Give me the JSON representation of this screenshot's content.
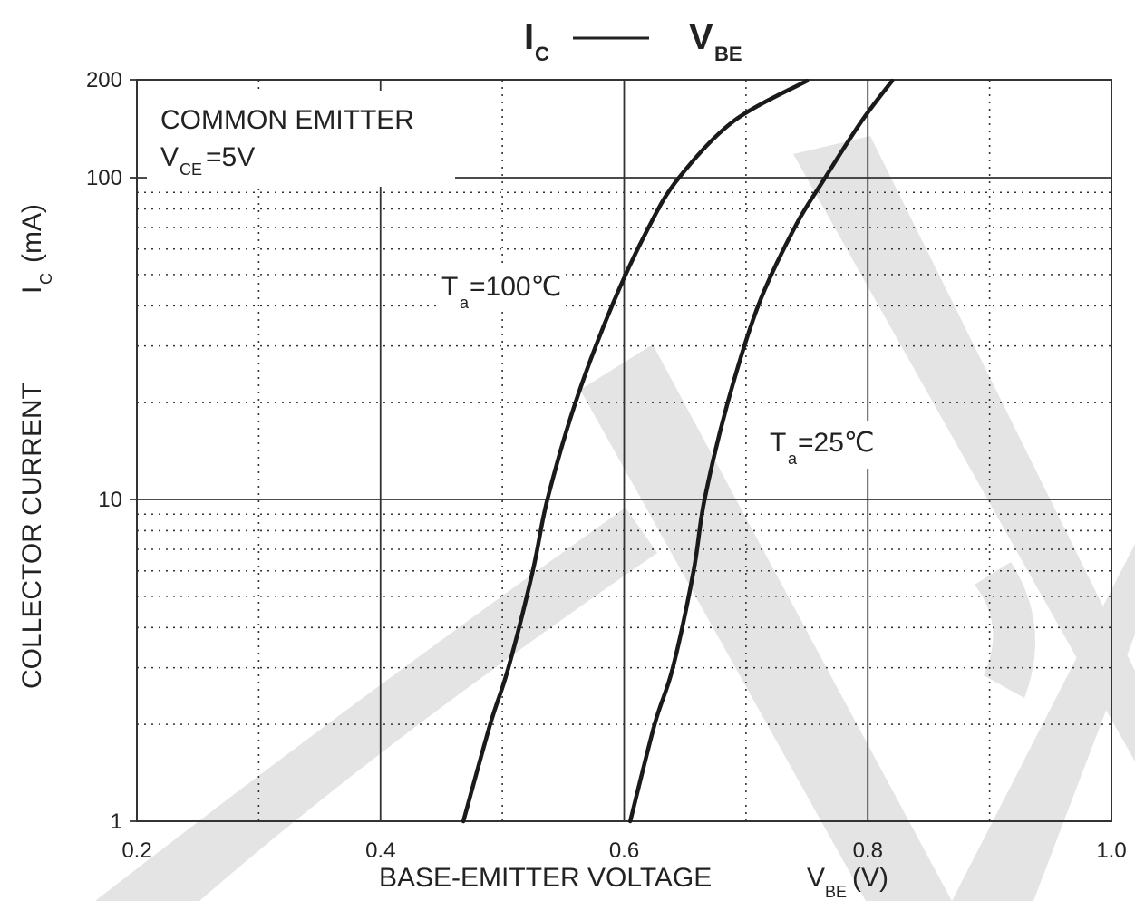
{
  "chart_data": {
    "type": "line",
    "title": {
      "main_1": "I",
      "sub_1": "C",
      "main_2": "V",
      "sub_2": "BE"
    },
    "xlabel": {
      "text": "BASE-EMITTER VOLTAGE",
      "symbol": "V",
      "symbol_sub": "BE",
      "unit": "(V)"
    },
    "ylabel": {
      "text": "COLLECTOR CURRENT",
      "symbol": "I",
      "symbol_sub": "C",
      "unit": "(mA)"
    },
    "xlim": [
      0.2,
      1.0
    ],
    "ylim": [
      1,
      200
    ],
    "y_scale": "log",
    "grid": true,
    "x_ticks": [
      {
        "value": 0.2,
        "label": "0.2"
      },
      {
        "value": 0.4,
        "label": "0.4"
      },
      {
        "value": 0.6,
        "label": "0.6"
      },
      {
        "value": 0.8,
        "label": "0.8"
      },
      {
        "value": 1.0,
        "label": "1.0"
      }
    ],
    "y_ticks": [
      {
        "value": 1,
        "label": "1"
      },
      {
        "value": 10,
        "label": "10"
      },
      {
        "value": 100,
        "label": "100"
      },
      {
        "value": 200,
        "label": "200"
      }
    ],
    "annotations": {
      "condition_line1": "COMMON EMITTER",
      "condition_line2_main": "V",
      "condition_line2_sub": "CE",
      "condition_line2_rest": "=5V"
    },
    "series": [
      {
        "label_main": "T",
        "label_sub": "a",
        "label_rest": "=100℃",
        "points": [
          {
            "x": 0.468,
            "y": 1
          },
          {
            "x": 0.49,
            "y": 2
          },
          {
            "x": 0.505,
            "y": 3
          },
          {
            "x": 0.525,
            "y": 6
          },
          {
            "x": 0.537,
            "y": 10
          },
          {
            "x": 0.56,
            "y": 20
          },
          {
            "x": 0.59,
            "y": 40
          },
          {
            "x": 0.62,
            "y": 70
          },
          {
            "x": 0.645,
            "y": 100
          },
          {
            "x": 0.69,
            "y": 150
          },
          {
            "x": 0.75,
            "y": 200
          }
        ]
      },
      {
        "label_main": "T",
        "label_sub": "a",
        "label_rest": "=25℃",
        "points": [
          {
            "x": 0.605,
            "y": 1
          },
          {
            "x": 0.625,
            "y": 2
          },
          {
            "x": 0.64,
            "y": 3
          },
          {
            "x": 0.657,
            "y": 6
          },
          {
            "x": 0.666,
            "y": 10
          },
          {
            "x": 0.685,
            "y": 20
          },
          {
            "x": 0.71,
            "y": 40
          },
          {
            "x": 0.74,
            "y": 70
          },
          {
            "x": 0.765,
            "y": 100
          },
          {
            "x": 0.795,
            "y": 150
          },
          {
            "x": 0.82,
            "y": 200
          }
        ]
      }
    ]
  }
}
